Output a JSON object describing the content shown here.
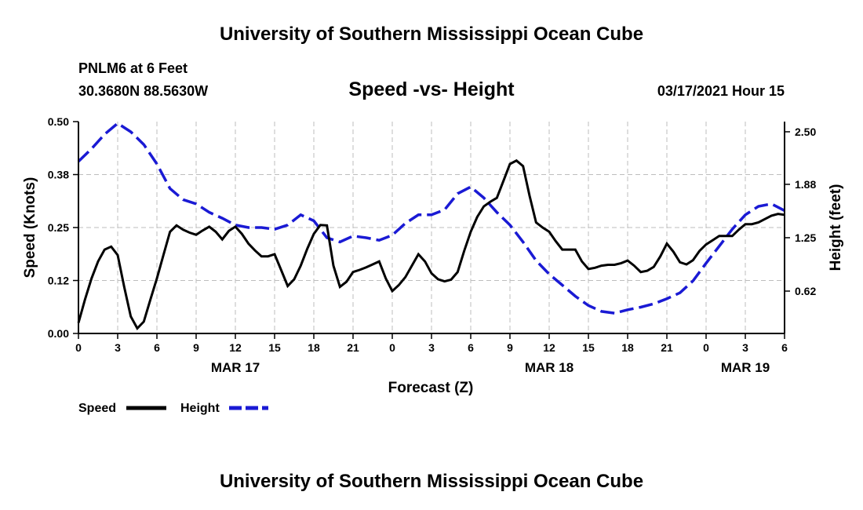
{
  "header": {
    "title": "University of Southern Mississippi Ocean Cube",
    "station": "PNLM6 at 6 Feet",
    "coords": "30.3680N 88.5630W",
    "date": "03/17/2021 Hour 15"
  },
  "footer": {
    "title": "University of Southern Mississippi Ocean Cube"
  },
  "legend": {
    "speed_label": "Speed",
    "height_label": "Height"
  },
  "colors": {
    "speed": "#000000",
    "height": "#1a1ad4",
    "grid": "#bdbdbd"
  },
  "chart_data": {
    "type": "line",
    "title": "Speed -vs- Height",
    "xlabel": "Forecast (Z)",
    "ylabel": "Speed (Knots)",
    "y2label": "Height (feet)",
    "x_unit": "hours since MAR 17 00Z",
    "xlim": [
      0,
      54
    ],
    "ylim": [
      0,
      0.5
    ],
    "y2lim": [
      0.12,
      2.62
    ],
    "x_ticks": [
      {
        "x": 0,
        "label": "0"
      },
      {
        "x": 3,
        "label": "3"
      },
      {
        "x": 6,
        "label": "6"
      },
      {
        "x": 9,
        "label": "9"
      },
      {
        "x": 12,
        "label": "12"
      },
      {
        "x": 15,
        "label": "15"
      },
      {
        "x": 18,
        "label": "18"
      },
      {
        "x": 21,
        "label": "21"
      },
      {
        "x": 24,
        "label": "0"
      },
      {
        "x": 27,
        "label": "3"
      },
      {
        "x": 30,
        "label": "6"
      },
      {
        "x": 33,
        "label": "9"
      },
      {
        "x": 36,
        "label": "12"
      },
      {
        "x": 39,
        "label": "15"
      },
      {
        "x": 42,
        "label": "18"
      },
      {
        "x": 45,
        "label": "21"
      },
      {
        "x": 48,
        "label": "0"
      },
      {
        "x": 51,
        "label": "3"
      },
      {
        "x": 54,
        "label": "6"
      }
    ],
    "date_labels": [
      {
        "x": 12,
        "label": "MAR 17"
      },
      {
        "x": 36,
        "label": "MAR 18"
      },
      {
        "x": 51,
        "label": "MAR 19"
      }
    ],
    "y_ticks": [
      {
        "v": 0.0,
        "label": "0.00"
      },
      {
        "v": 0.125,
        "label": "0.12"
      },
      {
        "v": 0.25,
        "label": "0.25"
      },
      {
        "v": 0.375,
        "label": "0.38"
      },
      {
        "v": 0.5,
        "label": "0.50"
      }
    ],
    "y2_ticks": [
      {
        "v": 0.62,
        "label": "0.62"
      },
      {
        "v": 1.25,
        "label": "1.25"
      },
      {
        "v": 1.88,
        "label": "1.88"
      },
      {
        "v": 2.5,
        "label": "2.50"
      }
    ],
    "series": [
      {
        "name": "Speed",
        "axis": "left",
        "style": "solid",
        "x": [
          0,
          0.5,
          1,
          1.5,
          2,
          2.5,
          3,
          3.5,
          4,
          4.5,
          5,
          5.5,
          6,
          6.5,
          7,
          7.5,
          8,
          8.5,
          9,
          9.5,
          10,
          10.5,
          11,
          11.5,
          12,
          12.5,
          13,
          13.5,
          14,
          14.5,
          15,
          15.5,
          16,
          16.5,
          17,
          17.5,
          18,
          18.5,
          19,
          19.5,
          20,
          20.5,
          21,
          21.5,
          22,
          22.5,
          23,
          23.5,
          24,
          24.5,
          25,
          25.5,
          26,
          26.5,
          27,
          27.5,
          28,
          28.5,
          29,
          29.5,
          30,
          30.5,
          31,
          31.5,
          32,
          32.5,
          33,
          33.5,
          34,
          34.5,
          35,
          35.5,
          36,
          36.5,
          37,
          37.5,
          38,
          38.5,
          39,
          39.5,
          40,
          40.5,
          41,
          41.5,
          42,
          42.5,
          43,
          43.5,
          44,
          44.5,
          45,
          45.5,
          46,
          46.5,
          47,
          47.5,
          48,
          48.5,
          49,
          49.5,
          50,
          50.5,
          51,
          51.5,
          52,
          52.5,
          53,
          53.5,
          54
        ],
        "values": [
          0.025,
          0.08,
          0.13,
          0.17,
          0.198,
          0.205,
          0.185,
          0.11,
          0.04,
          0.012,
          0.028,
          0.08,
          0.13,
          0.185,
          0.24,
          0.255,
          0.245,
          0.238,
          0.233,
          0.243,
          0.252,
          0.24,
          0.222,
          0.242,
          0.252,
          0.235,
          0.212,
          0.196,
          0.182,
          0.182,
          0.187,
          0.15,
          0.112,
          0.128,
          0.16,
          0.2,
          0.235,
          0.256,
          0.255,
          0.16,
          0.11,
          0.122,
          0.145,
          0.15,
          0.156,
          0.163,
          0.17,
          0.13,
          0.1,
          0.114,
          0.133,
          0.16,
          0.187,
          0.17,
          0.142,
          0.128,
          0.123,
          0.127,
          0.145,
          0.195,
          0.24,
          0.275,
          0.3,
          0.311,
          0.32,
          0.36,
          0.4,
          0.408,
          0.395,
          0.325,
          0.262,
          0.25,
          0.24,
          0.218,
          0.198,
          0.198,
          0.198,
          0.17,
          0.152,
          0.155,
          0.16,
          0.162,
          0.162,
          0.166,
          0.172,
          0.16,
          0.145,
          0.148,
          0.157,
          0.182,
          0.212,
          0.193,
          0.168,
          0.163,
          0.173,
          0.195,
          0.21,
          0.22,
          0.23,
          0.23,
          0.23,
          0.245,
          0.258,
          0.258,
          0.262,
          0.27,
          0.278,
          0.282,
          0.28
        ]
      },
      {
        "name": "Height",
        "axis": "right",
        "style": "dashed",
        "x": [
          0,
          1,
          2,
          3,
          4,
          5,
          6,
          7,
          8,
          9,
          10,
          11,
          12,
          13,
          14,
          15,
          16,
          17,
          18,
          19,
          20,
          21,
          22,
          23,
          24,
          25,
          26,
          27,
          28,
          29,
          30,
          31,
          32,
          33,
          34,
          35,
          36,
          37,
          38,
          39,
          40,
          41,
          42,
          43,
          44,
          45,
          46,
          47,
          48,
          49,
          50,
          51,
          52,
          53,
          54
        ],
        "values": [
          2.15,
          2.3,
          2.47,
          2.6,
          2.5,
          2.35,
          2.12,
          1.83,
          1.7,
          1.65,
          1.55,
          1.48,
          1.4,
          1.37,
          1.37,
          1.35,
          1.4,
          1.52,
          1.45,
          1.25,
          1.2,
          1.27,
          1.25,
          1.22,
          1.28,
          1.42,
          1.52,
          1.52,
          1.58,
          1.77,
          1.85,
          1.72,
          1.55,
          1.4,
          1.2,
          0.98,
          0.82,
          0.69,
          0.56,
          0.45,
          0.38,
          0.36,
          0.4,
          0.43,
          0.47,
          0.53,
          0.6,
          0.74,
          0.95,
          1.15,
          1.35,
          1.52,
          1.62,
          1.65,
          1.57
        ]
      }
    ]
  }
}
